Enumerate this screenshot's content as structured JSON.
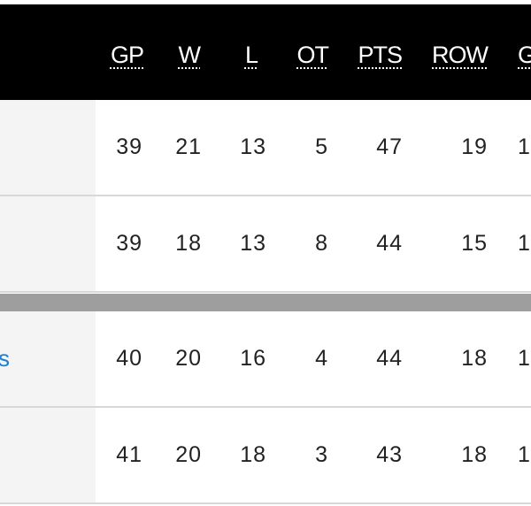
{
  "table": {
    "columns": [
      "GP",
      "W",
      "L",
      "OT",
      "PTS",
      "ROW",
      "G"
    ],
    "rows": [
      {
        "cells": [
          "39",
          "21",
          "13",
          "5",
          "47",
          "19",
          "1"
        ]
      },
      {
        "cells": [
          "39",
          "18",
          "13",
          "8",
          "44",
          "15",
          "1"
        ]
      },
      {
        "team": "s",
        "cells": [
          "40",
          "20",
          "16",
          "4",
          "44",
          "18",
          "1"
        ]
      },
      {
        "cells": [
          "41",
          "20",
          "18",
          "3",
          "43",
          "18",
          "1"
        ]
      }
    ]
  }
}
